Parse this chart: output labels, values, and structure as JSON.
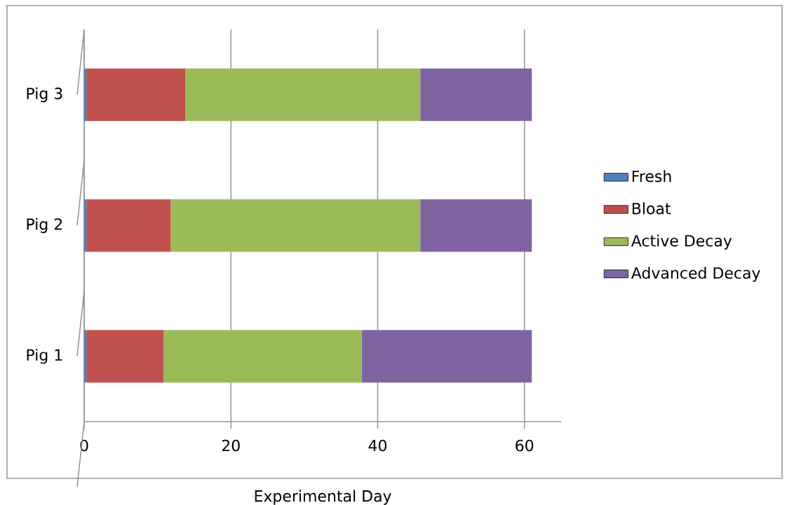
{
  "chart_data": {
    "type": "bar",
    "orientation": "horizontal",
    "stacked": true,
    "xlabel": "Experimental Day",
    "categories": [
      "Pig 3",
      "Pig 2",
      "Pig 1"
    ],
    "series": [
      {
        "name": "Fresh",
        "color": "#4f81bd",
        "values": [
          0.3,
          0.3,
          0.3
        ]
      },
      {
        "name": "Bloat",
        "color": "#c0504d",
        "values": [
          13.5,
          11.5,
          10.5
        ]
      },
      {
        "name": "Active Decay",
        "color": "#9bbb59",
        "values": [
          32,
          34,
          27
        ]
      },
      {
        "name": "Advanced Decay",
        "color": "#8064a2",
        "values": [
          15.2,
          15.2,
          23.2
        ]
      }
    ],
    "xlim": [
      0,
      65
    ],
    "xticks": [
      0,
      20,
      40,
      60
    ],
    "grid": "x",
    "legend": "right"
  }
}
